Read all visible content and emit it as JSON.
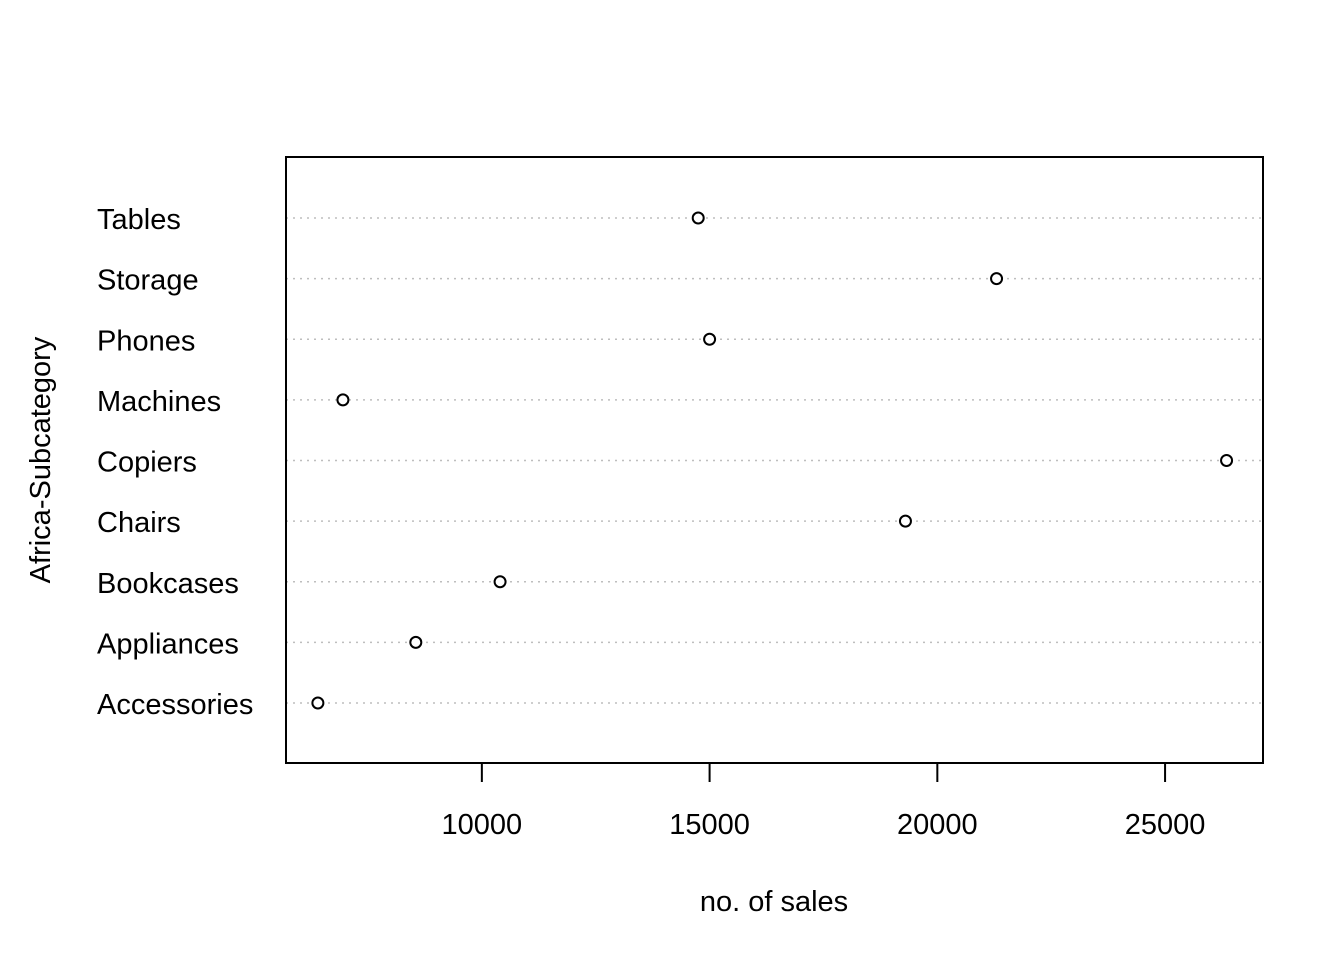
{
  "chart_data": {
    "type": "scatter",
    "subtype": "dotchart",
    "title": "",
    "xlabel": "no. of sales",
    "ylabel": "Africa-Subcategory",
    "categories": [
      "Accessories",
      "Appliances",
      "Bookcases",
      "Chairs",
      "Copiers",
      "Machines",
      "Phones",
      "Storage",
      "Tables"
    ],
    "values": [
      6400,
      8550,
      10400,
      19300,
      26350,
      6950,
      15000,
      21300,
      14750
    ],
    "xlim": [
      5700,
      27150
    ],
    "xticks": [
      10000,
      15000,
      20000,
      25000
    ],
    "xtick_labels": [
      "10000",
      "15000",
      "20000",
      "25000"
    ],
    "grid": "dotted horizontal guide lines",
    "colors": {
      "marker_stroke": "#000000",
      "marker_fill": "#ffffff",
      "gridline": "#bebebe",
      "frame": "#000000"
    }
  }
}
